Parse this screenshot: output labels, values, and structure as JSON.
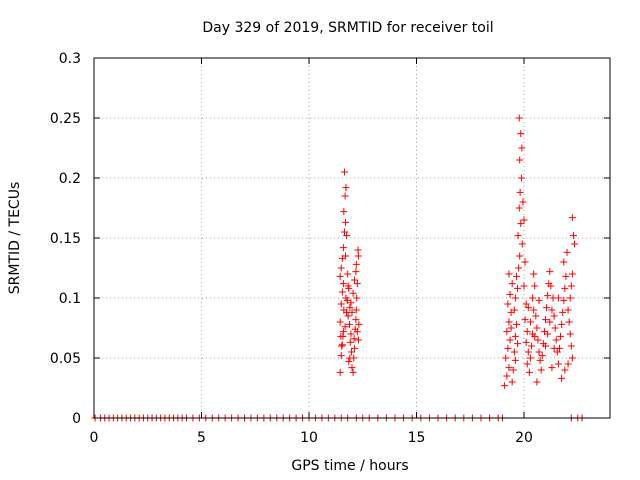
{
  "chart_data": {
    "type": "scatter",
    "title": "Day 329 of 2019, SRMTID for receiver toil",
    "xlabel": "GPS time / hours",
    "ylabel": "SRMTID / TECUs",
    "xlim": [
      0,
      24
    ],
    "ylim": [
      0,
      0.3
    ],
    "xticks": [
      0,
      5,
      10,
      15,
      20
    ],
    "xtick_labels": [
      "0",
      "5",
      "10",
      "15",
      "20"
    ],
    "yticks": [
      0,
      0.05,
      0.1,
      0.15,
      0.2,
      0.25,
      0.3
    ],
    "ytick_labels": [
      "0",
      "0.05",
      "0.1",
      "0.15",
      "0.2",
      "0.25",
      "0.3"
    ],
    "grid": true,
    "marker": "+",
    "color": "#ff0000",
    "series": [
      {
        "name": "SRMTID",
        "points": [
          [
            0.05,
            0
          ],
          [
            0.3,
            0
          ],
          [
            0.5,
            0
          ],
          [
            0.7,
            0
          ],
          [
            0.9,
            0
          ],
          [
            1.1,
            0
          ],
          [
            1.3,
            0
          ],
          [
            1.5,
            0
          ],
          [
            1.7,
            0
          ],
          [
            1.9,
            0
          ],
          [
            2.1,
            0
          ],
          [
            2.3,
            0
          ],
          [
            2.5,
            0
          ],
          [
            2.7,
            0
          ],
          [
            2.9,
            0
          ],
          [
            3.1,
            0
          ],
          [
            3.3,
            0
          ],
          [
            3.5,
            0
          ],
          [
            3.7,
            0
          ],
          [
            3.9,
            0
          ],
          [
            4.1,
            0
          ],
          [
            4.3,
            0
          ],
          [
            4.6,
            0
          ],
          [
            4.9,
            0
          ],
          [
            5.2,
            0
          ],
          [
            5.5,
            0
          ],
          [
            5.8,
            0
          ],
          [
            6.1,
            0
          ],
          [
            6.4,
            0
          ],
          [
            6.7,
            0
          ],
          [
            7.0,
            0
          ],
          [
            7.3,
            0
          ],
          [
            7.6,
            0
          ],
          [
            7.9,
            0
          ],
          [
            8.2,
            0
          ],
          [
            8.5,
            0
          ],
          [
            8.8,
            0
          ],
          [
            9.1,
            0
          ],
          [
            9.4,
            0
          ],
          [
            9.7,
            0
          ],
          [
            10.0,
            0
          ],
          [
            10.3,
            0
          ],
          [
            10.6,
            0
          ],
          [
            10.9,
            0
          ],
          [
            11.2,
            0
          ],
          [
            11.5,
            0
          ],
          [
            11.8,
            0
          ],
          [
            12.2,
            0
          ],
          [
            12.5,
            0
          ],
          [
            12.8,
            0
          ],
          [
            13.2,
            0
          ],
          [
            13.6,
            0
          ],
          [
            14.0,
            0
          ],
          [
            14.4,
            0
          ],
          [
            14.8,
            0
          ],
          [
            15.2,
            0
          ],
          [
            15.6,
            0
          ],
          [
            16.0,
            0
          ],
          [
            16.4,
            0
          ],
          [
            16.8,
            0
          ],
          [
            17.2,
            0
          ],
          [
            17.6,
            0
          ],
          [
            18.0,
            0
          ],
          [
            18.4,
            0
          ],
          [
            18.8,
            0
          ],
          [
            19.0,
            0
          ],
          [
            22.2,
            0
          ],
          [
            22.5,
            0
          ],
          [
            22.7,
            0
          ],
          [
            11.45,
            0.038
          ],
          [
            11.5,
            0.052
          ],
          [
            11.55,
            0.061
          ],
          [
            11.6,
            0.072
          ],
          [
            11.45,
            0.08
          ],
          [
            11.5,
            0.095
          ],
          [
            11.55,
            0.105
          ],
          [
            11.6,
            0.112
          ],
          [
            11.45,
            0.118
          ],
          [
            11.5,
            0.125
          ],
          [
            11.55,
            0.133
          ],
          [
            11.6,
            0.142
          ],
          [
            11.65,
            0.155
          ],
          [
            11.7,
            0.163
          ],
          [
            11.62,
            0.172
          ],
          [
            11.68,
            0.185
          ],
          [
            11.72,
            0.192
          ],
          [
            11.65,
            0.205
          ],
          [
            11.75,
            0.152
          ],
          [
            11.7,
            0.135
          ],
          [
            11.8,
            0.12
          ],
          [
            11.85,
            0.108
          ],
          [
            11.78,
            0.098
          ],
          [
            11.9,
            0.092
          ],
          [
            11.82,
            0.085
          ],
          [
            11.88,
            0.078
          ],
          [
            11.95,
            0.07
          ],
          [
            11.92,
            0.063
          ],
          [
            11.98,
            0.055
          ],
          [
            11.85,
            0.047
          ],
          [
            12.0,
            0.042
          ],
          [
            12.05,
            0.038
          ],
          [
            12.08,
            0.05
          ],
          [
            12.12,
            0.058
          ],
          [
            12.1,
            0.066
          ],
          [
            12.15,
            0.074
          ],
          [
            12.18,
            0.082
          ],
          [
            12.2,
            0.09
          ],
          [
            12.22,
            0.1
          ],
          [
            12.25,
            0.112
          ],
          [
            12.18,
            0.122
          ],
          [
            12.3,
            0.135
          ],
          [
            12.28,
            0.14
          ],
          [
            12.2,
            0.128
          ],
          [
            12.12,
            0.115
          ],
          [
            12.05,
            0.104
          ],
          [
            11.95,
            0.096
          ],
          [
            11.75,
            0.088
          ],
          [
            11.68,
            0.076
          ],
          [
            11.58,
            0.068
          ],
          [
            11.52,
            0.06
          ],
          [
            11.62,
            0.09
          ],
          [
            11.72,
            0.1
          ],
          [
            11.82,
            0.11
          ],
          [
            12.0,
            0.088
          ],
          [
            12.25,
            0.072
          ],
          [
            12.3,
            0.065
          ],
          [
            12.32,
            0.078
          ],
          [
            11.48,
            0.068
          ],
          [
            11.9,
            0.05
          ],
          [
            19.1,
            0.027
          ],
          [
            19.2,
            0.035
          ],
          [
            19.3,
            0.042
          ],
          [
            19.15,
            0.05
          ],
          [
            19.25,
            0.058
          ],
          [
            19.35,
            0.065
          ],
          [
            19.2,
            0.072
          ],
          [
            19.3,
            0.08
          ],
          [
            19.4,
            0.088
          ],
          [
            19.25,
            0.095
          ],
          [
            19.35,
            0.103
          ],
          [
            19.45,
            0.112
          ],
          [
            19.3,
            0.12
          ],
          [
            19.5,
            0.04
          ],
          [
            19.55,
            0.055
          ],
          [
            19.6,
            0.068
          ],
          [
            19.65,
            0.078
          ],
          [
            19.55,
            0.09
          ],
          [
            19.6,
            0.1
          ],
          [
            19.7,
            0.108
          ],
          [
            19.65,
            0.118
          ],
          [
            19.75,
            0.125
          ],
          [
            19.8,
            0.135
          ],
          [
            19.72,
            0.152
          ],
          [
            19.85,
            0.162
          ],
          [
            19.78,
            0.175
          ],
          [
            19.82,
            0.188
          ],
          [
            19.88,
            0.2
          ],
          [
            19.8,
            0.215
          ],
          [
            19.9,
            0.225
          ],
          [
            19.85,
            0.237
          ],
          [
            19.78,
            0.25
          ],
          [
            19.95,
            0.18
          ],
          [
            20.0,
            0.165
          ],
          [
            19.92,
            0.145
          ],
          [
            20.05,
            0.13
          ],
          [
            20.0,
            0.11
          ],
          [
            20.1,
            0.095
          ],
          [
            20.05,
            0.082
          ],
          [
            20.15,
            0.072
          ],
          [
            20.1,
            0.063
          ],
          [
            20.2,
            0.055
          ],
          [
            20.15,
            0.045
          ],
          [
            20.25,
            0.038
          ],
          [
            20.3,
            0.05
          ],
          [
            20.35,
            0.06
          ],
          [
            20.4,
            0.07
          ],
          [
            20.3,
            0.08
          ],
          [
            20.45,
            0.09
          ],
          [
            20.4,
            0.1
          ],
          [
            20.5,
            0.11
          ],
          [
            20.45,
            0.12
          ],
          [
            20.55,
            0.085
          ],
          [
            20.6,
            0.075
          ],
          [
            20.65,
            0.065
          ],
          [
            20.7,
            0.055
          ],
          [
            20.75,
            0.048
          ],
          [
            20.8,
            0.04
          ],
          [
            20.85,
            0.052
          ],
          [
            20.9,
            0.062
          ],
          [
            20.95,
            0.072
          ],
          [
            21.0,
            0.082
          ],
          [
            21.05,
            0.092
          ],
          [
            21.1,
            0.102
          ],
          [
            21.15,
            0.112
          ],
          [
            21.2,
            0.122
          ],
          [
            21.0,
            0.06
          ],
          [
            21.1,
            0.07
          ],
          [
            21.2,
            0.08
          ],
          [
            21.3,
            0.09
          ],
          [
            21.35,
            0.1
          ],
          [
            21.4,
            0.085
          ],
          [
            21.45,
            0.075
          ],
          [
            21.5,
            0.065
          ],
          [
            21.55,
            0.055
          ],
          [
            21.6,
            0.045
          ],
          [
            21.65,
            0.058
          ],
          [
            21.7,
            0.068
          ],
          [
            21.75,
            0.078
          ],
          [
            21.8,
            0.088
          ],
          [
            21.85,
            0.098
          ],
          [
            21.9,
            0.108
          ],
          [
            21.95,
            0.118
          ],
          [
            21.85,
            0.13
          ],
          [
            22.0,
            0.138
          ],
          [
            22.05,
            0.09
          ],
          [
            22.1,
            0.08
          ],
          [
            22.15,
            0.07
          ],
          [
            22.2,
            0.06
          ],
          [
            22.25,
            0.05
          ],
          [
            22.15,
            0.1
          ],
          [
            22.2,
            0.11
          ],
          [
            22.25,
            0.12
          ],
          [
            22.3,
            0.152
          ],
          [
            22.25,
            0.167
          ],
          [
            22.35,
            0.145
          ],
          [
            21.9,
            0.04
          ],
          [
            21.75,
            0.033
          ],
          [
            21.3,
            0.042
          ],
          [
            20.6,
            0.03
          ],
          [
            19.45,
            0.03
          ],
          [
            19.6,
            0.048
          ],
          [
            20.2,
            0.092
          ],
          [
            20.7,
            0.098
          ],
          [
            21.25,
            0.11
          ],
          [
            21.6,
            0.1
          ],
          [
            22.05,
            0.045
          ],
          [
            19.4,
            0.075
          ],
          [
            19.7,
            0.062
          ],
          [
            20.5,
            0.068
          ],
          [
            21.4,
            0.058
          ]
        ]
      }
    ]
  }
}
